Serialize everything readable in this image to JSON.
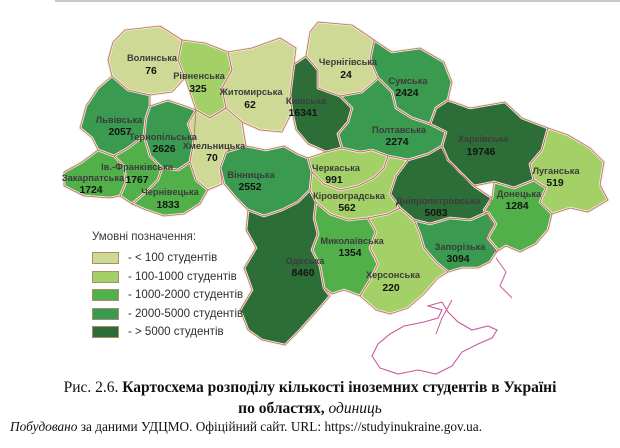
{
  "legend": {
    "title": "Умовні позначення:",
    "items": [
      {
        "label": "- < 100 студентів",
        "color": "#cdd994"
      },
      {
        "label": "- 100-1000 студентів",
        "color": "#a4d068"
      },
      {
        "label": "- 1000-2000 студентів",
        "color": "#52b04b"
      },
      {
        "label": "- 2000-5000 студентів",
        "color": "#3a9a4f"
      },
      {
        "label": "- > 5000 студентів",
        "color": "#2d6e38"
      }
    ]
  },
  "map": {
    "category_colors": [
      "#cdd994",
      "#a4d068",
      "#52b04b",
      "#3a9a4f",
      "#2d6e38"
    ],
    "border_outer_color": "#f2edda",
    "border_inner_color": "#bc6a64",
    "crimea_outline_color": "#c75b9b",
    "regions": [
      {
        "id": "volynska",
        "name": "Волинська",
        "value": "76",
        "category": 0
      },
      {
        "id": "rivnenska",
        "name": "Рівненська",
        "value": "325",
        "category": 1
      },
      {
        "id": "zhytomyrska",
        "name": "Житомирська",
        "value": "62",
        "category": 0
      },
      {
        "id": "chernihivska",
        "name": "Чернігівська",
        "value": "24",
        "category": 0
      },
      {
        "id": "sumska",
        "name": "Сумська",
        "value": "2424",
        "category": 3
      },
      {
        "id": "kyivska",
        "name": "Київська",
        "value": "16341",
        "category": 4
      },
      {
        "id": "lvivska",
        "name": "Львівська",
        "value": "2057",
        "category": 3
      },
      {
        "id": "ternopilska",
        "name": "Тернопільська",
        "value": "2626",
        "category": 3
      },
      {
        "id": "khmelnytska",
        "name": "Хмельницька",
        "value": "70",
        "category": 0
      },
      {
        "id": "ivanofrankivska",
        "name": "Ів.-Франківська",
        "value": "1767",
        "category": 2
      },
      {
        "id": "zakarpatska",
        "name": "Закарпатська",
        "value": "1724",
        "category": 2
      },
      {
        "id": "chernivetska",
        "name": "Чернівецька",
        "value": "1833",
        "category": 2
      },
      {
        "id": "vinnytska",
        "name": "Вінницька",
        "value": "2552",
        "category": 3
      },
      {
        "id": "cherkaska",
        "name": "Черкаська",
        "value": "991",
        "category": 1
      },
      {
        "id": "poltavska",
        "name": "Полтавська",
        "value": "2274",
        "category": 3
      },
      {
        "id": "kharkivska",
        "name": "Харківська",
        "value": "19746",
        "category": 4
      },
      {
        "id": "luhanska",
        "name": "Луганська",
        "value": "519",
        "category": 1
      },
      {
        "id": "kirovohradska",
        "name": "Кіровоградська",
        "value": "562",
        "category": 1
      },
      {
        "id": "dnipropetrovska",
        "name": "Дніпропетровська",
        "value": "5083",
        "category": 4
      },
      {
        "id": "donetska",
        "name": "Донецька",
        "value": "1284",
        "category": 2
      },
      {
        "id": "zaporizka",
        "name": "Запорізька",
        "value": "3094",
        "category": 3
      },
      {
        "id": "mykolaivska",
        "name": "Миколаївська",
        "value": "1354",
        "category": 2
      },
      {
        "id": "odeska",
        "name": "Одеська",
        "value": "8460",
        "category": 4
      },
      {
        "id": "khersonska",
        "name": "Херсонська",
        "value": "220",
        "category": 1
      }
    ]
  },
  "caption": {
    "figure_label": "Рис. 2.6.",
    "title_bold": "Картосхема розподілу кількості іноземних студентів в Україні",
    "line2_bold": "по областях,",
    "line2_italic": "одиниць"
  },
  "source": {
    "lead_italic": "Побудовано",
    "text": " за даними УДЦМО. Офіційний сайт. URL: https://studyinukraine.gov.ua."
  }
}
